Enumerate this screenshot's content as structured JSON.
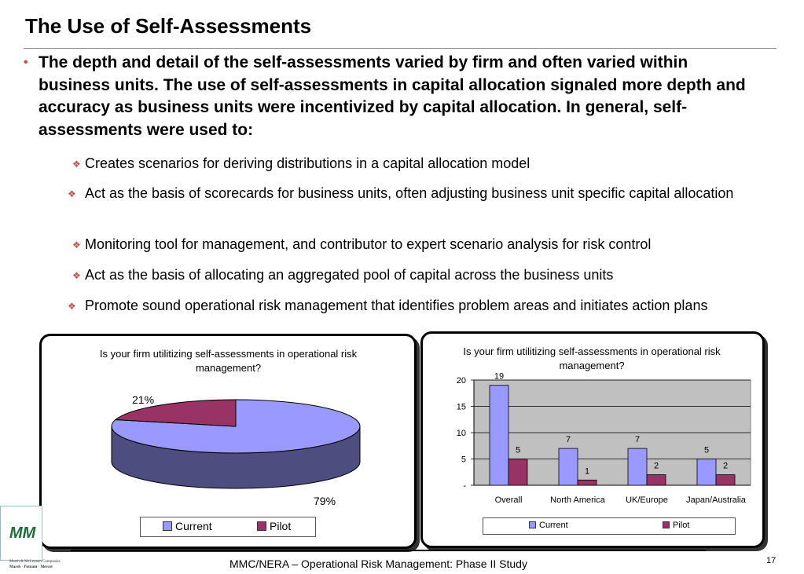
{
  "slide": {
    "title": "The Use of Self-Assessments",
    "main_bullet": "The depth and detail of the self-assessments varied by firm and often varied within business units.   The use of self-assessments in capital allocation signaled more depth and accuracy as business units were incentivized by capital allocation.  In general, self-assessments were used to:",
    "sub_bullets": [
      "Creates scenarios for deriving distributions in a capital allocation model",
      "Act as the basis of scorecards for business units, often adjusting business unit specific capital allocation",
      "Monitoring tool for management, and contributor to expert scenario analysis for risk control",
      "Act as the basis of allocating an aggregated pool of capital across the business units",
      "Promote sound operational risk management that identifies problem areas and initiates action plans"
    ],
    "footer": "MMC/NERA – Operational Risk Management: Phase II Study",
    "page_number": "17",
    "logo_text": "MM",
    "company_line1": "Marsh & McLennan Companies",
    "company_line2": "Marsh · Putnam · Mercer",
    "bullet_color": "#c0504d"
  },
  "chart_data": [
    {
      "type": "pie",
      "title": "Is your firm utilitizing self-assessments in operational risk management?",
      "categories": [
        "Current",
        "Pilot"
      ],
      "values": [
        79,
        21
      ],
      "labels": [
        "79%",
        "21%"
      ],
      "colors": [
        "#9999ff",
        "#993366"
      ],
      "legend": "bottom"
    },
    {
      "type": "bar",
      "title": "Is your firm utilitizing self-assessments in operational risk management?",
      "categories": [
        "Overall",
        "North America",
        "UK/Europe",
        "Japan/Australia"
      ],
      "series": [
        {
          "name": "Current",
          "values": [
            19,
            7,
            7,
            5
          ],
          "color": "#9999ff"
        },
        {
          "name": "Pilot",
          "values": [
            5,
            1,
            2,
            2
          ],
          "color": "#993366"
        }
      ],
      "ylim": [
        0,
        20
      ],
      "yticks": [
        0,
        5,
        10,
        15,
        20
      ],
      "ytick_labels": [
        "-",
        "5",
        "10",
        "15",
        "20"
      ],
      "grid": true,
      "legend": "bottom"
    }
  ]
}
